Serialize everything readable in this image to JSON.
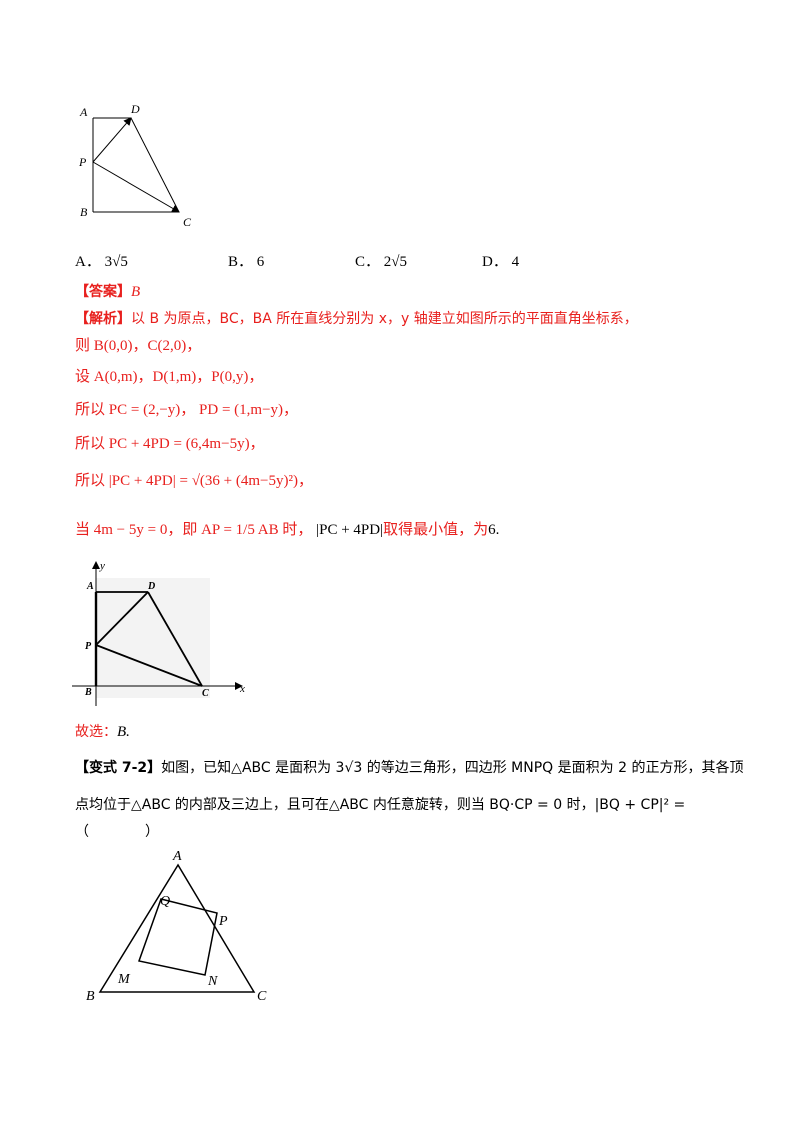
{
  "fig1": {
    "labels": [
      "A",
      "D",
      "P",
      "B",
      "C"
    ]
  },
  "options": [
    {
      "letter": "A．",
      "value": "3√5"
    },
    {
      "letter": "B．",
      "value": "6"
    },
    {
      "letter": "C．",
      "value": "2√5"
    },
    {
      "letter": "D．",
      "value": "4"
    }
  ],
  "answer": {
    "label": "【答案】",
    "value": "B"
  },
  "analysis": {
    "label": "【解析】",
    "intro": "以 B 为原点，BC，BA 所在直线分别为 x，y 轴建立如图所示的平面直角坐标系，",
    "l1": "则 B(0,0)，C(2,0)，",
    "l2": "设 A(0,m)，D(1,m)，P(0,y)，",
    "l3a": "所以 ",
    "l3b": "PC = (2,−y)，",
    "l3c": "PD = (1,m−y)，",
    "l4": "所以 PC + 4PD = (6,4m−5y)，",
    "l5": "所以 |PC + 4PD| = √(36 + (4m−5y)²)，",
    "l6a": "当 4m − 5y = 0，即 ",
    "l6b": "AP = 1/5 AB 时，",
    "l6c": "|PC + 4PD|",
    "l6d": "取得最小值，为",
    "l6e": "6."
  },
  "fig2": {
    "labels": [
      "y",
      "A",
      "D",
      "P",
      "B",
      "C",
      "x"
    ]
  },
  "choice": {
    "text": "故选：",
    "value": "B."
  },
  "variant": {
    "label": "【变式 7-2】",
    "line1": "如图，已知△ABC 是面积为 3√3 的等边三角形，四边形 MNPQ 是面积为 2 的正方形，其各顶",
    "line2": "点均位于△ABC 的内部及三边上，且可在△ABC 内任意旋转，则当 BQ·CP = 0 时，|BQ + CP|² =",
    "line3": "（　　　　）"
  },
  "fig3": {
    "labels": [
      "A",
      "Q",
      "P",
      "M",
      "N",
      "B",
      "C"
    ]
  }
}
